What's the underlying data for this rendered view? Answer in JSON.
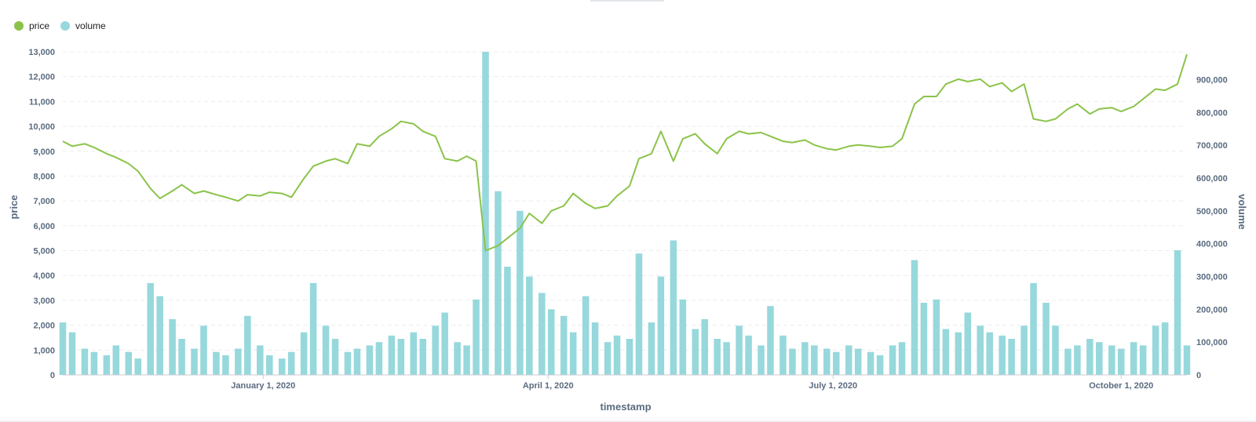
{
  "legend": {
    "items": [
      {
        "label": "price",
        "color": "#8bc34a"
      },
      {
        "label": "volume",
        "color": "#97d8dc"
      }
    ]
  },
  "chart_data": {
    "type": "line+bar",
    "xlabel": "timestamp",
    "y_left_label": "price",
    "y_right_label": "volume",
    "x_range": [
      "2019-10-29",
      "2020-10-22"
    ],
    "x_ticks": [
      {
        "date": "2020-01-01",
        "label": "January 1, 2020"
      },
      {
        "date": "2020-04-01",
        "label": "April 1, 2020"
      },
      {
        "date": "2020-07-01",
        "label": "July 1, 2020"
      },
      {
        "date": "2020-10-01",
        "label": "October 1, 2020"
      }
    ],
    "y_left": {
      "min": 0,
      "max": 13000,
      "ticks": [
        {
          "v": 0,
          "label": "0"
        },
        {
          "v": 1000,
          "label": "1,000"
        },
        {
          "v": 2000,
          "label": "2,000"
        },
        {
          "v": 3000,
          "label": "3,000"
        },
        {
          "v": 4000,
          "label": "4,000"
        },
        {
          "v": 5000,
          "label": "5,000"
        },
        {
          "v": 6000,
          "label": "6,000"
        },
        {
          "v": 7000,
          "label": "7,000"
        },
        {
          "v": 8000,
          "label": "8,000"
        },
        {
          "v": 9000,
          "label": "9,000"
        },
        {
          "v": 10000,
          "label": "10,000"
        },
        {
          "v": 11000,
          "label": "11,000"
        },
        {
          "v": 12000,
          "label": "12,000"
        },
        {
          "v": 13000,
          "label": "13,000"
        }
      ]
    },
    "y_right": {
      "min": 0,
      "max": 985000,
      "ticks": [
        {
          "v": 0,
          "label": "0"
        },
        {
          "v": 100000,
          "label": "100,000"
        },
        {
          "v": 200000,
          "label": "200,000"
        },
        {
          "v": 300000,
          "label": "300,000"
        },
        {
          "v": 400000,
          "label": "400,000"
        },
        {
          "v": 500000,
          "label": "500,000"
        },
        {
          "v": 600000,
          "label": "600,000"
        },
        {
          "v": 700000,
          "label": "700,000"
        },
        {
          "v": 800000,
          "label": "800,000"
        },
        {
          "v": 900000,
          "label": "900,000"
        }
      ]
    },
    "grid": true,
    "legend_position": "top-left",
    "series": [
      {
        "name": "price",
        "kind": "line",
        "color": "#8bc34a",
        "points": [
          [
            "2019-10-29",
            9400
          ],
          [
            "2019-11-01",
            9200
          ],
          [
            "2019-11-05",
            9300
          ],
          [
            "2019-11-08",
            9150
          ],
          [
            "2019-11-12",
            8900
          ],
          [
            "2019-11-15",
            8750
          ],
          [
            "2019-11-19",
            8500
          ],
          [
            "2019-11-22",
            8200
          ],
          [
            "2019-11-26",
            7500
          ],
          [
            "2019-11-29",
            7100
          ],
          [
            "2019-12-03",
            7400
          ],
          [
            "2019-12-06",
            7650
          ],
          [
            "2019-12-10",
            7300
          ],
          [
            "2019-12-13",
            7400
          ],
          [
            "2019-12-17",
            7250
          ],
          [
            "2019-12-20",
            7150
          ],
          [
            "2019-12-24",
            7000
          ],
          [
            "2019-12-27",
            7250
          ],
          [
            "2019-12-31",
            7200
          ],
          [
            "2020-01-03",
            7350
          ],
          [
            "2020-01-07",
            7300
          ],
          [
            "2020-01-10",
            7150
          ],
          [
            "2020-01-14",
            7900
          ],
          [
            "2020-01-17",
            8400
          ],
          [
            "2020-01-21",
            8600
          ],
          [
            "2020-01-24",
            8700
          ],
          [
            "2020-01-28",
            8500
          ],
          [
            "2020-01-31",
            9300
          ],
          [
            "2020-02-04",
            9200
          ],
          [
            "2020-02-07",
            9600
          ],
          [
            "2020-02-11",
            9900
          ],
          [
            "2020-02-14",
            10200
          ],
          [
            "2020-02-18",
            10100
          ],
          [
            "2020-02-21",
            9800
          ],
          [
            "2020-02-25",
            9600
          ],
          [
            "2020-02-28",
            8700
          ],
          [
            "2020-03-03",
            8600
          ],
          [
            "2020-03-06",
            8800
          ],
          [
            "2020-03-09",
            8600
          ],
          [
            "2020-03-12",
            5000
          ],
          [
            "2020-03-16",
            5200
          ],
          [
            "2020-03-19",
            5500
          ],
          [
            "2020-03-23",
            5900
          ],
          [
            "2020-03-26",
            6500
          ],
          [
            "2020-03-30",
            6100
          ],
          [
            "2020-04-02",
            6600
          ],
          [
            "2020-04-06",
            6800
          ],
          [
            "2020-04-09",
            7300
          ],
          [
            "2020-04-13",
            6900
          ],
          [
            "2020-04-16",
            6700
          ],
          [
            "2020-04-20",
            6800
          ],
          [
            "2020-04-23",
            7200
          ],
          [
            "2020-04-27",
            7600
          ],
          [
            "2020-04-30",
            8700
          ],
          [
            "2020-05-04",
            8900
          ],
          [
            "2020-05-07",
            9800
          ],
          [
            "2020-05-11",
            8600
          ],
          [
            "2020-05-14",
            9500
          ],
          [
            "2020-05-18",
            9700
          ],
          [
            "2020-05-21",
            9300
          ],
          [
            "2020-05-25",
            8900
          ],
          [
            "2020-05-28",
            9500
          ],
          [
            "2020-06-01",
            9800
          ],
          [
            "2020-06-04",
            9700
          ],
          [
            "2020-06-08",
            9750
          ],
          [
            "2020-06-11",
            9600
          ],
          [
            "2020-06-15",
            9400
          ],
          [
            "2020-06-18",
            9350
          ],
          [
            "2020-06-22",
            9450
          ],
          [
            "2020-06-25",
            9250
          ],
          [
            "2020-06-29",
            9100
          ],
          [
            "2020-07-02",
            9050
          ],
          [
            "2020-07-06",
            9200
          ],
          [
            "2020-07-09",
            9250
          ],
          [
            "2020-07-13",
            9200
          ],
          [
            "2020-07-16",
            9150
          ],
          [
            "2020-07-20",
            9200
          ],
          [
            "2020-07-23",
            9500
          ],
          [
            "2020-07-27",
            10900
          ],
          [
            "2020-07-30",
            11200
          ],
          [
            "2020-08-03",
            11200
          ],
          [
            "2020-08-06",
            11700
          ],
          [
            "2020-08-10",
            11900
          ],
          [
            "2020-08-13",
            11800
          ],
          [
            "2020-08-17",
            11900
          ],
          [
            "2020-08-20",
            11600
          ],
          [
            "2020-08-24",
            11750
          ],
          [
            "2020-08-27",
            11400
          ],
          [
            "2020-08-31",
            11700
          ],
          [
            "2020-09-03",
            10300
          ],
          [
            "2020-09-07",
            10200
          ],
          [
            "2020-09-10",
            10300
          ],
          [
            "2020-09-14",
            10700
          ],
          [
            "2020-09-17",
            10900
          ],
          [
            "2020-09-21",
            10500
          ],
          [
            "2020-09-24",
            10700
          ],
          [
            "2020-09-28",
            10750
          ],
          [
            "2020-10-01",
            10600
          ],
          [
            "2020-10-05",
            10800
          ],
          [
            "2020-10-08",
            11100
          ],
          [
            "2020-10-12",
            11500
          ],
          [
            "2020-10-15",
            11450
          ],
          [
            "2020-10-19",
            11700
          ],
          [
            "2020-10-22",
            12900
          ]
        ]
      },
      {
        "name": "volume",
        "kind": "bar",
        "color": "#97d8dc",
        "bars": [
          [
            "2019-10-29",
            160000
          ],
          [
            "2019-11-01",
            130000
          ],
          [
            "2019-11-05",
            80000
          ],
          [
            "2019-11-08",
            70000
          ],
          [
            "2019-11-12",
            60000
          ],
          [
            "2019-11-15",
            90000
          ],
          [
            "2019-11-19",
            70000
          ],
          [
            "2019-11-22",
            50000
          ],
          [
            "2019-11-26",
            280000
          ],
          [
            "2019-11-29",
            240000
          ],
          [
            "2019-12-03",
            170000
          ],
          [
            "2019-12-06",
            110000
          ],
          [
            "2019-12-10",
            80000
          ],
          [
            "2019-12-13",
            150000
          ],
          [
            "2019-12-17",
            70000
          ],
          [
            "2019-12-20",
            60000
          ],
          [
            "2019-12-24",
            80000
          ],
          [
            "2019-12-27",
            180000
          ],
          [
            "2019-12-31",
            90000
          ],
          [
            "2020-01-03",
            60000
          ],
          [
            "2020-01-07",
            50000
          ],
          [
            "2020-01-10",
            70000
          ],
          [
            "2020-01-14",
            130000
          ],
          [
            "2020-01-17",
            280000
          ],
          [
            "2020-01-21",
            150000
          ],
          [
            "2020-01-24",
            110000
          ],
          [
            "2020-01-28",
            70000
          ],
          [
            "2020-01-31",
            80000
          ],
          [
            "2020-02-04",
            90000
          ],
          [
            "2020-02-07",
            100000
          ],
          [
            "2020-02-11",
            120000
          ],
          [
            "2020-02-14",
            110000
          ],
          [
            "2020-02-18",
            130000
          ],
          [
            "2020-02-21",
            110000
          ],
          [
            "2020-02-25",
            150000
          ],
          [
            "2020-02-28",
            190000
          ],
          [
            "2020-03-03",
            100000
          ],
          [
            "2020-03-06",
            90000
          ],
          [
            "2020-03-09",
            230000
          ],
          [
            "2020-03-12",
            985000
          ],
          [
            "2020-03-16",
            560000
          ],
          [
            "2020-03-19",
            330000
          ],
          [
            "2020-03-23",
            500000
          ],
          [
            "2020-03-26",
            300000
          ],
          [
            "2020-03-30",
            250000
          ],
          [
            "2020-04-02",
            200000
          ],
          [
            "2020-04-06",
            180000
          ],
          [
            "2020-04-09",
            130000
          ],
          [
            "2020-04-13",
            240000
          ],
          [
            "2020-04-16",
            160000
          ],
          [
            "2020-04-20",
            100000
          ],
          [
            "2020-04-23",
            120000
          ],
          [
            "2020-04-27",
            110000
          ],
          [
            "2020-04-30",
            370000
          ],
          [
            "2020-05-04",
            160000
          ],
          [
            "2020-05-07",
            300000
          ],
          [
            "2020-05-11",
            410000
          ],
          [
            "2020-05-14",
            230000
          ],
          [
            "2020-05-18",
            140000
          ],
          [
            "2020-05-21",
            170000
          ],
          [
            "2020-05-25",
            110000
          ],
          [
            "2020-05-28",
            100000
          ],
          [
            "2020-06-01",
            150000
          ],
          [
            "2020-06-04",
            120000
          ],
          [
            "2020-06-08",
            90000
          ],
          [
            "2020-06-11",
            210000
          ],
          [
            "2020-06-15",
            120000
          ],
          [
            "2020-06-18",
            80000
          ],
          [
            "2020-06-22",
            100000
          ],
          [
            "2020-06-25",
            90000
          ],
          [
            "2020-06-29",
            80000
          ],
          [
            "2020-07-02",
            70000
          ],
          [
            "2020-07-06",
            90000
          ],
          [
            "2020-07-09",
            80000
          ],
          [
            "2020-07-13",
            70000
          ],
          [
            "2020-07-16",
            60000
          ],
          [
            "2020-07-20",
            90000
          ],
          [
            "2020-07-23",
            100000
          ],
          [
            "2020-07-27",
            350000
          ],
          [
            "2020-07-30",
            220000
          ],
          [
            "2020-08-03",
            230000
          ],
          [
            "2020-08-06",
            140000
          ],
          [
            "2020-08-10",
            130000
          ],
          [
            "2020-08-13",
            190000
          ],
          [
            "2020-08-17",
            150000
          ],
          [
            "2020-08-20",
            130000
          ],
          [
            "2020-08-24",
            120000
          ],
          [
            "2020-08-27",
            110000
          ],
          [
            "2020-08-31",
            150000
          ],
          [
            "2020-09-03",
            280000
          ],
          [
            "2020-09-07",
            220000
          ],
          [
            "2020-09-10",
            150000
          ],
          [
            "2020-09-14",
            80000
          ],
          [
            "2020-09-17",
            90000
          ],
          [
            "2020-09-21",
            110000
          ],
          [
            "2020-09-24",
            100000
          ],
          [
            "2020-09-28",
            90000
          ],
          [
            "2020-10-01",
            80000
          ],
          [
            "2020-10-05",
            100000
          ],
          [
            "2020-10-08",
            90000
          ],
          [
            "2020-10-12",
            150000
          ],
          [
            "2020-10-15",
            160000
          ],
          [
            "2020-10-19",
            380000
          ],
          [
            "2020-10-22",
            90000
          ]
        ]
      }
    ]
  }
}
